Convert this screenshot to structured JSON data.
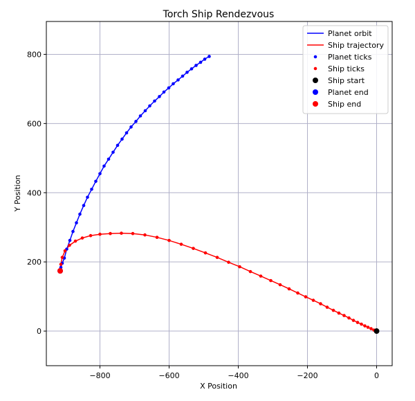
{
  "chart_data": {
    "type": "line",
    "title": "Torch Ship Rendezvous",
    "xlabel": "X Position",
    "ylabel": "Y Position",
    "xlim": [
      -955,
      45
    ],
    "ylim": [
      -100,
      895
    ],
    "xticks": [
      -800,
      -600,
      -400,
      -200,
      0
    ],
    "yticks": [
      0,
      200,
      400,
      600,
      800
    ],
    "grid": true,
    "legend_position": "top-right",
    "colors": {
      "planet": "#0000ff",
      "ship": "#ff0000",
      "start": "#000000"
    },
    "legend": [
      {
        "label": "Planet orbit",
        "kind": "line",
        "color": "#0000ff"
      },
      {
        "label": "Ship trajectory",
        "kind": "line",
        "color": "#ff0000"
      },
      {
        "label": "Planet ticks",
        "kind": "small-dot",
        "color": "#0000ff"
      },
      {
        "label": "Ship ticks",
        "kind": "small-dot",
        "color": "#ff0000"
      },
      {
        "label": "Ship start",
        "kind": "dot",
        "color": "#000000"
      },
      {
        "label": "Planet end",
        "kind": "dot",
        "color": "#0000ff"
      },
      {
        "label": "Ship end",
        "kind": "dot",
        "color": "#ff0000"
      }
    ],
    "series": [
      {
        "name": "Planet orbit",
        "x": [
          -484,
          -497,
          -509,
          -522,
          -535,
          -548,
          -561,
          -574,
          -588,
          -601,
          -615,
          -628,
          -642,
          -656,
          -669,
          -683,
          -696,
          -710,
          -723,
          -736,
          -749,
          -762,
          -775,
          -788,
          -800,
          -812,
          -824,
          -836,
          -847,
          -858,
          -868,
          -878,
          -887,
          -896,
          -903,
          -909,
          -913,
          -915
        ],
        "y": [
          794,
          786,
          777,
          768,
          758,
          748,
          737,
          726,
          715,
          703,
          691,
          678,
          665,
          651,
          637,
          622,
          606,
          590,
          573,
          555,
          537,
          517,
          497,
          477,
          455,
          433,
          410,
          387,
          363,
          338,
          313,
          288,
          262,
          237,
          211,
          196,
          184,
          174
        ]
      },
      {
        "name": "Ship trajectory",
        "x": [
          0,
          -8,
          -16,
          -25,
          -34,
          -44,
          -55,
          -67,
          -80,
          -94,
          -109,
          -125,
          -143,
          -162,
          -183,
          -205,
          -228,
          -253,
          -279,
          -306,
          -335,
          -365,
          -396,
          -428,
          -461,
          -495,
          -530,
          -565,
          -600,
          -635,
          -670,
          -705,
          -738,
          -770,
          -800,
          -827,
          -851,
          -871,
          -888,
          -901,
          -909,
          -913,
          -915
        ],
        "y": [
          0,
          3,
          7,
          11,
          15,
          20,
          25,
          31,
          38,
          45,
          52,
          60,
          69,
          79,
          89,
          99,
          110,
          122,
          134,
          146,
          159,
          172,
          186,
          199,
          213,
          226,
          239,
          251,
          262,
          271,
          278,
          282,
          283,
          282,
          280,
          276,
          269,
          260,
          248,
          232,
          213,
          193,
          174
        ]
      }
    ],
    "start": {
      "x": 0,
      "y": 0
    },
    "planet_end": {
      "x": -915,
      "y": 174
    },
    "ship_end": {
      "x": -915,
      "y": 174
    }
  }
}
